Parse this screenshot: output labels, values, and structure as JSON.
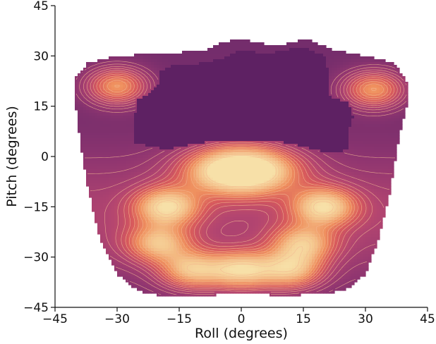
{
  "chart_data": {
    "type": "contour",
    "title": "",
    "xlabel": "Roll (degrees)",
    "ylabel": "Pitch (degrees)",
    "xlim": [
      -45,
      45
    ],
    "ylim": [
      -45,
      45
    ],
    "xticks": [
      -45,
      -30,
      -15,
      0,
      15,
      30,
      45
    ],
    "yticks": [
      -45,
      -30,
      -15,
      0,
      15,
      30,
      45
    ],
    "xtick_labels": [
      "−45",
      "−30",
      "−15",
      "0",
      "15",
      "30",
      "45"
    ],
    "ytick_labels": [
      "−45",
      "−30",
      "−15",
      "0",
      "15",
      "30",
      "45"
    ],
    "grid": false,
    "colormap": [
      "#5c1f62",
      "#6b2a6a",
      "#8f3570",
      "#b34570",
      "#d85a5c",
      "#ef8f5e",
      "#f4c38a",
      "#f7e0a8"
    ],
    "density_peaks": [
      {
        "roll": 0,
        "pitch": -4,
        "level": 1.0
      },
      {
        "roll": -30,
        "pitch": 21,
        "level": 0.55
      },
      {
        "roll": 32,
        "pitch": 20,
        "level": 0.55
      },
      {
        "roll": -20,
        "pitch": -26,
        "level": 0.5
      },
      {
        "roll": 15,
        "pitch": -26,
        "level": 0.5
      },
      {
        "roll": -18,
        "pitch": -15,
        "level": 0.6
      },
      {
        "roll": 20,
        "pitch": -15,
        "level": 0.6
      },
      {
        "roll": 0,
        "pitch": -34,
        "level": 0.62
      },
      {
        "roll": -12,
        "pitch": -34,
        "level": 0.55
      },
      {
        "roll": 12,
        "pitch": -34,
        "level": 0.55
      }
    ],
    "outer_boundary": [
      [
        -40,
        24
      ],
      [
        -37,
        28
      ],
      [
        -30,
        30
      ],
      [
        -15,
        31
      ],
      [
        -8,
        32
      ],
      [
        -5,
        34
      ],
      [
        0,
        35
      ],
      [
        4,
        34
      ],
      [
        8,
        33
      ],
      [
        12,
        34
      ],
      [
        16,
        35
      ],
      [
        22,
        32
      ],
      [
        30,
        30
      ],
      [
        37,
        28
      ],
      [
        40,
        22
      ],
      [
        40,
        15
      ],
      [
        38,
        5
      ],
      [
        36,
        -10
      ],
      [
        33,
        -25
      ],
      [
        30,
        -35
      ],
      [
        25,
        -40
      ],
      [
        18,
        -41
      ],
      [
        10,
        -41.5
      ],
      [
        5,
        -41
      ],
      [
        0,
        -40.5
      ],
      [
        -5,
        -41
      ],
      [
        -10,
        -42
      ],
      [
        -18,
        -42
      ],
      [
        -25,
        -40
      ],
      [
        -30,
        -35
      ],
      [
        -34,
        -25
      ],
      [
        -37,
        -10
      ],
      [
        -39,
        5
      ],
      [
        -40,
        15
      ]
    ],
    "hole_boundary": [
      [
        -25,
        17
      ],
      [
        -22,
        19
      ],
      [
        -20,
        22
      ],
      [
        -20,
        25
      ],
      [
        -17,
        27
      ],
      [
        -8,
        28
      ],
      [
        -3,
        30
      ],
      [
        0,
        32
      ],
      [
        4,
        31
      ],
      [
        8,
        31
      ],
      [
        12,
        32
      ],
      [
        16,
        32
      ],
      [
        20,
        30
      ],
      [
        21,
        26
      ],
      [
        21,
        18
      ],
      [
        26,
        16
      ],
      [
        27,
        12
      ],
      [
        26,
        8
      ],
      [
        26,
        2
      ],
      [
        22,
        1
      ],
      [
        18,
        2
      ],
      [
        12,
        4
      ],
      [
        5,
        5
      ],
      [
        0,
        5
      ],
      [
        -5,
        5
      ],
      [
        -10,
        4
      ],
      [
        -15,
        3
      ],
      [
        -18,
        2
      ],
      [
        -22,
        3
      ],
      [
        -26,
        4
      ],
      [
        -26,
        10
      ]
    ]
  }
}
